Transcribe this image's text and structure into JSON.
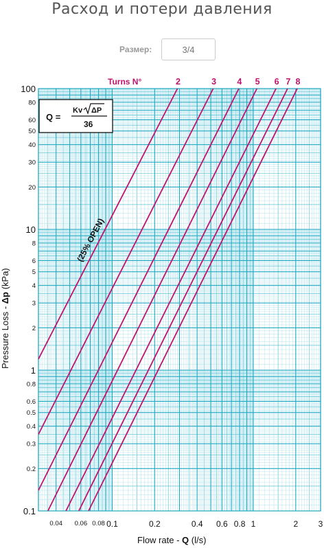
{
  "page": {
    "title": "Расход и потери давления",
    "size_label": "Размер:",
    "size_value": "3/4"
  },
  "chart_data": {
    "type": "line",
    "xlabel": "Flow rate - Q (l/s)",
    "ylabel": "Pressure Loss - Δp (kPa)",
    "x_scale": "log",
    "y_scale": "log",
    "xlim": [
      0.03,
      3
    ],
    "ylim": [
      0.1,
      100
    ],
    "grid": true,
    "x_ticks": [
      "0.04",
      "0.06",
      "0.08",
      "0.1",
      "0.2",
      "0.4",
      "0.6",
      "0.8",
      "1",
      "2",
      "3"
    ],
    "y_ticks": [
      "0.1",
      "0.2",
      "0.3",
      "0.4",
      "0.5",
      "0.6",
      "0.8",
      "1",
      "2",
      "3",
      "4",
      "5",
      "6",
      "8",
      "10",
      "20",
      "30",
      "40",
      "50",
      "60",
      "80",
      "100"
    ],
    "turns_label": "Turns N°",
    "formula": {
      "lhs": "Q",
      "kv": "Kv",
      "radicand": "ΔP",
      "denominator": "36"
    },
    "annotation": "(25% OPEN)",
    "line_color": "#c0136e",
    "series": [
      {
        "name": "2",
        "points": [
          [
            0.03,
            1.2
          ],
          [
            0.29,
            100
          ]
        ]
      },
      {
        "name": "3",
        "points": [
          [
            0.03,
            0.35
          ],
          [
            0.52,
            100
          ]
        ]
      },
      {
        "name": "4",
        "points": [
          [
            0.03,
            0.14
          ],
          [
            0.79,
            100
          ]
        ]
      },
      {
        "name": "5",
        "points": [
          [
            0.035,
            0.1
          ],
          [
            1.06,
            100
          ]
        ]
      },
      {
        "name": "6",
        "points": [
          [
            0.047,
            0.1
          ],
          [
            1.45,
            100
          ]
        ]
      },
      {
        "name": "7",
        "points": [
          [
            0.058,
            0.1
          ],
          [
            1.75,
            100
          ]
        ]
      },
      {
        "name": "8",
        "points": [
          [
            0.068,
            0.1
          ],
          [
            2.05,
            100
          ]
        ]
      }
    ]
  }
}
